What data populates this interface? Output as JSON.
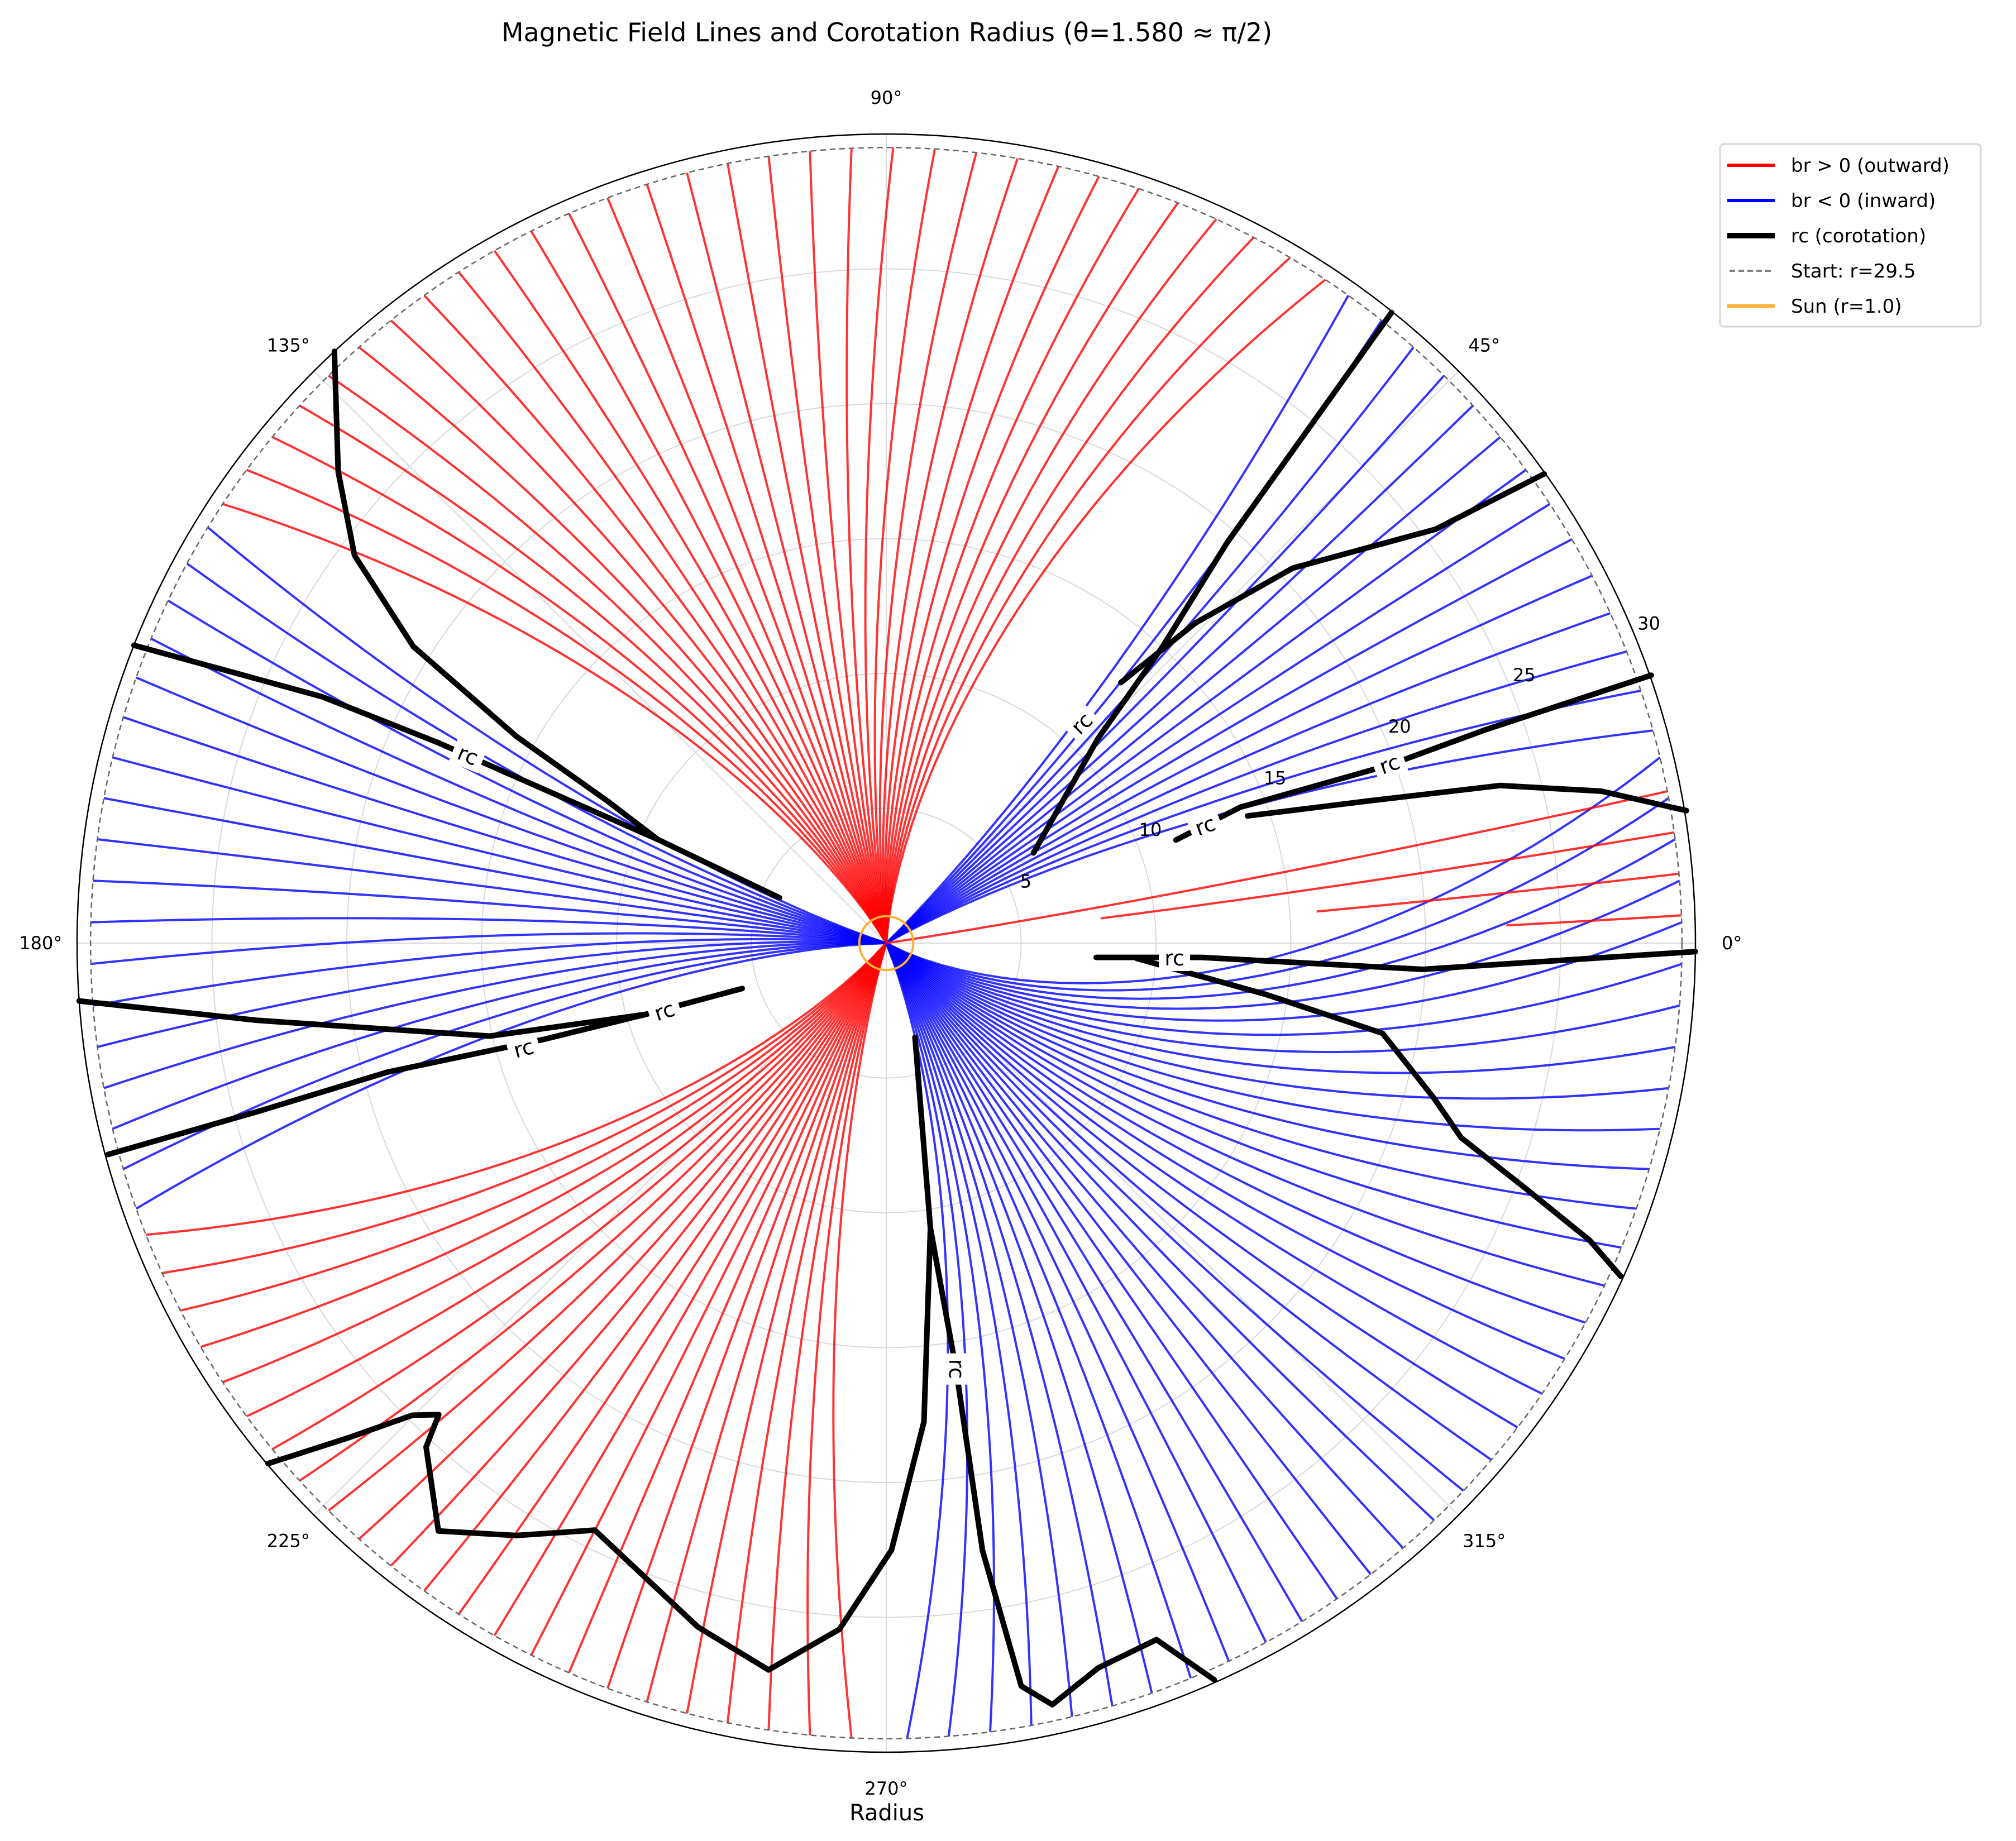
{
  "chart_data": {
    "type": "polar-line",
    "title": "Magnetic Field Lines and Corotation Radius (θ=1.580 ≈ π/2)",
    "xlabel": "Radius",
    "rlim": [
      0,
      30
    ],
    "r_ticks": [
      "5",
      "10",
      "15",
      "20",
      "25",
      "30"
    ],
    "r_tick_values": [
      5,
      10,
      15,
      20,
      25,
      30
    ],
    "theta_ticks": [
      "0°",
      "45°",
      "90°",
      "135°",
      "180°",
      "225°",
      "270°",
      "315°"
    ],
    "theta_tick_values": [
      0,
      45,
      90,
      135,
      180,
      225,
      270,
      315
    ],
    "grid": true,
    "legend_position": "upper-right outside",
    "legend": [
      {
        "label": "br > 0 (outward)",
        "color": "#ff0000",
        "style": "solid"
      },
      {
        "label": "br < 0 (inward)",
        "color": "#0000ff",
        "style": "solid"
      },
      {
        "label": "rc (corotation)",
        "color": "#000000",
        "style": "thick"
      },
      {
        "label": "Start: r=29.5",
        "color": "#808080",
        "style": "dashed"
      },
      {
        "label": "Sun (r=1.0)",
        "color": "#ffb030",
        "style": "solid"
      }
    ],
    "start_radius": 29.5,
    "sun_radius": 1.0,
    "field_lines": {
      "angle_step_deg": 3,
      "sectors": [
        {
          "from": 14,
          "to": 55,
          "sign": "negative",
          "center": 38
        },
        {
          "from": 55,
          "to": 147,
          "sign": "positive",
          "center": 105
        },
        {
          "from": 147,
          "to": 200,
          "sign": "negative",
          "center": 170
        },
        {
          "from": 200,
          "to": 270,
          "sign": "positive",
          "center": 245
        },
        {
          "from": 270,
          "to": 374,
          "sign": "negative",
          "center": 305
        }
      ],
      "partial_lines": [
        {
          "start_angle": 2,
          "r_end": 23
        },
        {
          "start_angle": 5,
          "r_end": 16
        },
        {
          "start_angle": 8,
          "r_end": 8
        },
        {
          "start_angle": 11,
          "r_end": 0
        }
      ]
    },
    "corotation_curves": [
      {
        "name": "rc-a",
        "points": [
          [
            29.96,
            51.3
          ],
          [
            19.5,
            49.6
          ],
          [
            15,
            47
          ],
          [
            10.9,
            44
          ],
          [
            6.4,
            31.5
          ]
        ]
      },
      {
        "name": "rc-b",
        "points": [
          [
            29.96,
            35.5
          ],
          [
            25.5,
            37
          ],
          [
            20.5,
            42.7
          ],
          [
            16.5,
            46
          ],
          [
            13,
            48
          ]
        ]
      },
      {
        "name": "rc-c",
        "points": [
          [
            30.05,
            19.3
          ],
          [
            23.6,
            19.6
          ],
          [
            19.8,
            19.5
          ],
          [
            14.06,
            21
          ],
          [
            11.4,
            19.6
          ]
        ]
      },
      {
        "name": "rc-d",
        "points": [
          [
            30.07,
            9.4
          ],
          [
            27.1,
            12
          ],
          [
            23.5,
            14.4
          ],
          [
            18.7,
            16.4
          ],
          [
            14.2,
            19.4
          ]
        ]
      },
      {
        "name": "rc-e",
        "points": [
          [
            30,
            -0.6
          ],
          [
            19.9,
            -2.8
          ],
          [
            11.7,
            -2.6
          ],
          [
            7.8,
            -3.9
          ]
        ]
      },
      {
        "name": "rc-f",
        "points": [
          [
            9.3,
            -3.5
          ],
          [
            14.2,
            -7.7
          ],
          [
            18.7,
            -10.3
          ],
          [
            21.1,
            -15.8
          ],
          [
            22.5,
            -18.7
          ],
          [
            25.4,
            -21
          ],
          [
            28.3,
            -22.9
          ],
          [
            29.9,
            -24.4
          ]
        ]
      },
      {
        "name": "rc-g",
        "points": [
          [
            3.65,
            -73
          ],
          [
            10.7,
            -81.2
          ],
          [
            16,
            -80.7
          ],
          [
            22.8,
            -81
          ],
          [
            28,
            -79.7
          ],
          [
            28.9,
            -77.7
          ],
          [
            28,
            -73.7
          ],
          [
            27.7,
            -68.8
          ],
          [
            29.9,
            -66
          ]
        ]
      },
      {
        "name": "rc-h",
        "points": [
          [
            10.7,
            -81.2
          ],
          [
            17.8,
            -85.5
          ],
          [
            22.5,
            -89.5
          ],
          [
            25.5,
            -93.9
          ],
          [
            27.3,
            -99.2
          ],
          [
            26.3,
            -105.4
          ],
          [
            24.3,
            -116.4
          ],
          [
            25.9,
            -122
          ],
          [
            27.4,
            -127.3
          ],
          [
            25.3,
            -132.4
          ],
          [
            24.1,
            -133.5
          ],
          [
            24.8,
            -135.1
          ],
          [
            27.1,
            -137.4
          ],
          [
            29.96,
            -139.9
          ]
        ]
      },
      {
        "name": "rc-i",
        "points": [
          [
            30,
            -175.9
          ],
          [
            23.5,
            -173
          ],
          [
            15.1,
            -166.8
          ],
          [
            9.3,
            -163.5
          ],
          [
            5.6,
            -162.5
          ]
        ]
      },
      {
        "name": "rc-j",
        "points": [
          [
            29.9,
            -164.8
          ],
          [
            24.1,
            -165
          ],
          [
            19.1,
            -165.5
          ],
          [
            13.2,
            -164.3
          ],
          [
            9.3,
            -163.5
          ]
        ]
      },
      {
        "name": "rc-k",
        "points": [
          [
            30,
            158.4
          ],
          [
            22.8,
            156.4
          ],
          [
            18.2,
            155.9
          ],
          [
            9.3,
            155.6
          ],
          [
            4.3,
            157
          ]
        ]
      },
      {
        "name": "rc-l",
        "points": [
          [
            30,
            133
          ],
          [
            26.8,
            139.3
          ],
          [
            24.4,
            143.9
          ],
          [
            20.7,
            147.9
          ],
          [
            15.7,
            150.8
          ],
          [
            11.6,
            153
          ],
          [
            9.3,
            155.6
          ]
        ]
      }
    ],
    "annotations": [
      {
        "text": "rc",
        "r": 10.9,
        "angle": 48.2,
        "rotate": -45
      },
      {
        "text": "rc",
        "r": 12.6,
        "angle": 20.1,
        "rotate": -20
      },
      {
        "text": "rc",
        "r": 19.8,
        "angle": 19.5,
        "rotate": -20
      },
      {
        "text": "rc",
        "r": 10.7,
        "angle": -3.1,
        "rotate": 0
      },
      {
        "text": "rc",
        "r": 17,
        "angle": 155.9,
        "rotate": 22
      },
      {
        "text": "rc",
        "r": 14,
        "angle": -163.7,
        "rotate": -15
      },
      {
        "text": "rc",
        "r": 8.6,
        "angle": -162.8,
        "rotate": -18
      },
      {
        "text": "rc",
        "r": 16,
        "angle": -80.7,
        "rotate": 90
      }
    ]
  }
}
